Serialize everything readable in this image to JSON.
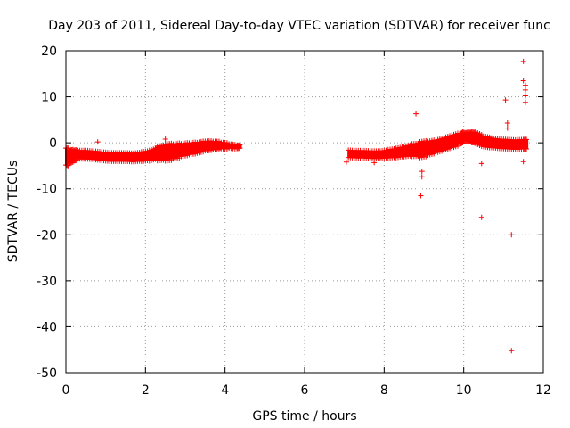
{
  "chart_data": {
    "type": "scatter",
    "title": "Day 203 of 2011, Sidereal Day-to-day VTEC variation (SDTVAR) for receiver func",
    "xlabel": "GPS time / hours",
    "ylabel": "SDTVAR / TECUs",
    "xlim": [
      0,
      12
    ],
    "ylim": [
      -50,
      20
    ],
    "xticks": [
      "0",
      "2",
      "4",
      "6",
      "8",
      "10",
      "12"
    ],
    "yticks": [
      "20",
      "10",
      "0",
      "-10",
      "-20",
      "-30",
      "-40",
      "-50"
    ],
    "grid": true,
    "marker_color": "#ff0000",
    "marker": "plus",
    "band_segments": [
      {
        "x": [
          0.0,
          0.1,
          0.2,
          0.3,
          0.5,
          0.7,
          0.9,
          1.1,
          1.3,
          1.5,
          1.7,
          1.9,
          2.1,
          2.3,
          2.5,
          2.7,
          2.9,
          3.1,
          3.3,
          3.5,
          3.7,
          3.9,
          4.1,
          4.3,
          4.4
        ],
        "y": [
          -3.0,
          -3.0,
          -2.8,
          -2.6,
          -2.6,
          -2.7,
          -2.9,
          -3.1,
          -3.1,
          -3.1,
          -3.2,
          -3.0,
          -2.8,
          -2.3,
          -2.1,
          -1.9,
          -1.6,
          -1.3,
          -1.1,
          -0.7,
          -0.6,
          -0.6,
          -0.7,
          -0.9,
          -0.8
        ],
        "spread": [
          1.6,
          1.2,
          1.0,
          0.8,
          0.8,
          0.8,
          0.8,
          0.8,
          0.8,
          0.8,
          0.8,
          0.9,
          1.0,
          1.4,
          1.6,
          1.4,
          1.2,
          1.1,
          1.0,
          0.9,
          0.8,
          0.6,
          0.4,
          0.3,
          0.3
        ]
      },
      {
        "x": [
          7.1,
          7.3,
          7.5,
          7.7,
          7.9,
          8.1,
          8.3,
          8.5,
          8.7,
          8.9,
          9.1,
          9.3,
          9.5,
          9.7,
          9.9,
          10.0,
          10.1,
          10.2,
          10.3,
          10.5,
          10.7,
          10.9,
          11.1,
          11.3,
          11.5,
          11.6
        ],
        "y": [
          -2.4,
          -2.5,
          -2.5,
          -2.6,
          -2.6,
          -2.4,
          -2.2,
          -1.9,
          -1.6,
          -1.5,
          -1.2,
          -0.8,
          -0.3,
          0.3,
          0.8,
          1.3,
          1.3,
          1.2,
          1.1,
          0.3,
          0.0,
          -0.2,
          -0.3,
          -0.4,
          -0.3,
          -0.3
        ],
        "spread": [
          0.7,
          0.7,
          0.7,
          0.7,
          0.7,
          0.8,
          0.9,
          1.0,
          1.2,
          1.5,
          1.3,
          1.2,
          1.2,
          1.2,
          1.0,
          0.8,
          0.9,
          1.0,
          1.1,
          1.0,
          0.9,
          0.9,
          0.9,
          0.9,
          0.9,
          0.8
        ]
      }
    ],
    "outliers": [
      {
        "x": 7.05,
        "y": -4.2
      },
      {
        "x": 7.75,
        "y": -4.3
      },
      {
        "x": 8.8,
        "y": 6.3
      },
      {
        "x": 8.92,
        "y": -11.5
      },
      {
        "x": 8.95,
        "y": -7.4
      },
      {
        "x": 8.95,
        "y": -6.2
      },
      {
        "x": 10.45,
        "y": -16.2
      },
      {
        "x": 10.45,
        "y": -4.5
      },
      {
        "x": 11.05,
        "y": 9.3
      },
      {
        "x": 11.1,
        "y": 4.3
      },
      {
        "x": 11.1,
        "y": 3.2
      },
      {
        "x": 11.2,
        "y": -20.0
      },
      {
        "x": 11.2,
        "y": -45.2
      },
      {
        "x": 11.5,
        "y": 17.7
      },
      {
        "x": 11.5,
        "y": 13.5
      },
      {
        "x": 11.55,
        "y": 12.5
      },
      {
        "x": 11.55,
        "y": 11.5
      },
      {
        "x": 11.55,
        "y": 10.2
      },
      {
        "x": 11.55,
        "y": 8.8
      },
      {
        "x": 11.5,
        "y": -4.1
      },
      {
        "x": 0.8,
        "y": 0.2
      },
      {
        "x": 0.05,
        "y": -5.0
      },
      {
        "x": 2.5,
        "y": 0.8
      },
      {
        "x": 3.8,
        "y": 0.2
      }
    ]
  }
}
